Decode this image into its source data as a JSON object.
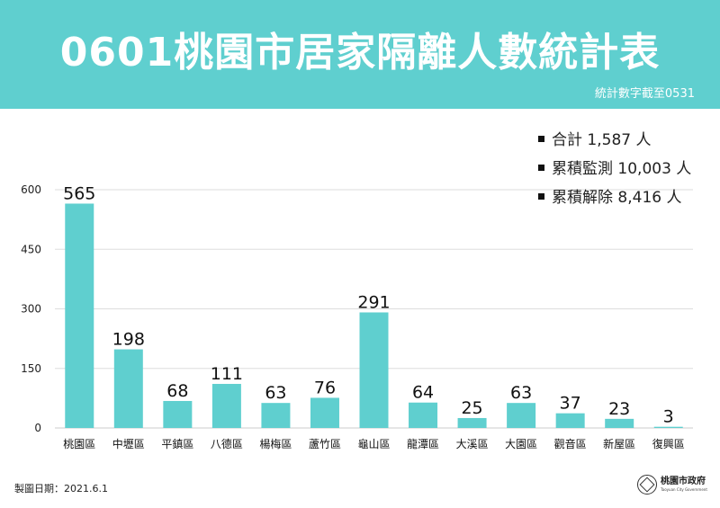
{
  "header": {
    "title": "0601桃園市居家隔離人數統計表",
    "note": "統計數字截至0531"
  },
  "summary": [
    "合計 1,587 人",
    "累積監測 10,003 人",
    "累積解除 8,416 人"
  ],
  "footer": {
    "date": "製圖日期：2021.6.1",
    "logo_cn": "桃園市政府",
    "logo_en": "Taoyuan City Government"
  },
  "colors": {
    "header": "#5fcfcf",
    "bar": "#5fcfcf",
    "grid": "#dddddd"
  },
  "chart_data": {
    "type": "bar",
    "categories": [
      "桃園區",
      "中壢區",
      "平鎮區",
      "八德區",
      "楊梅區",
      "蘆竹區",
      "龜山區",
      "龍潭區",
      "大溪區",
      "大園區",
      "觀音區",
      "新屋區",
      "復興區"
    ],
    "values": [
      565,
      198,
      68,
      111,
      63,
      76,
      291,
      64,
      25,
      63,
      37,
      23,
      3
    ],
    "yticks": [
      0,
      150,
      300,
      450,
      600
    ],
    "ylim": [
      0,
      600
    ],
    "grid": true,
    "legend": "none",
    "data_labels": true
  }
}
